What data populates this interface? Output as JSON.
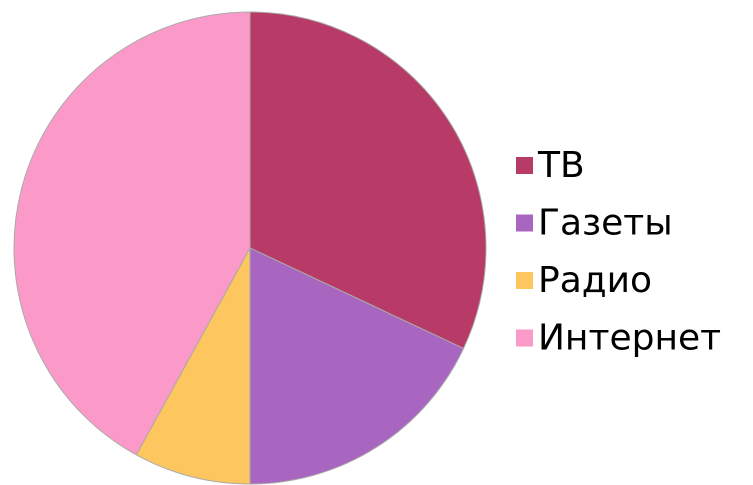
{
  "chart_data": {
    "type": "pie",
    "categories": [
      "ТВ",
      "Газеты",
      "Радио",
      "Интернет"
    ],
    "values": [
      32,
      18,
      8,
      42
    ],
    "colors": [
      "#b83b67",
      "#a866c0",
      "#fdc65e",
      "#fb9ac9"
    ],
    "legend": "right"
  }
}
